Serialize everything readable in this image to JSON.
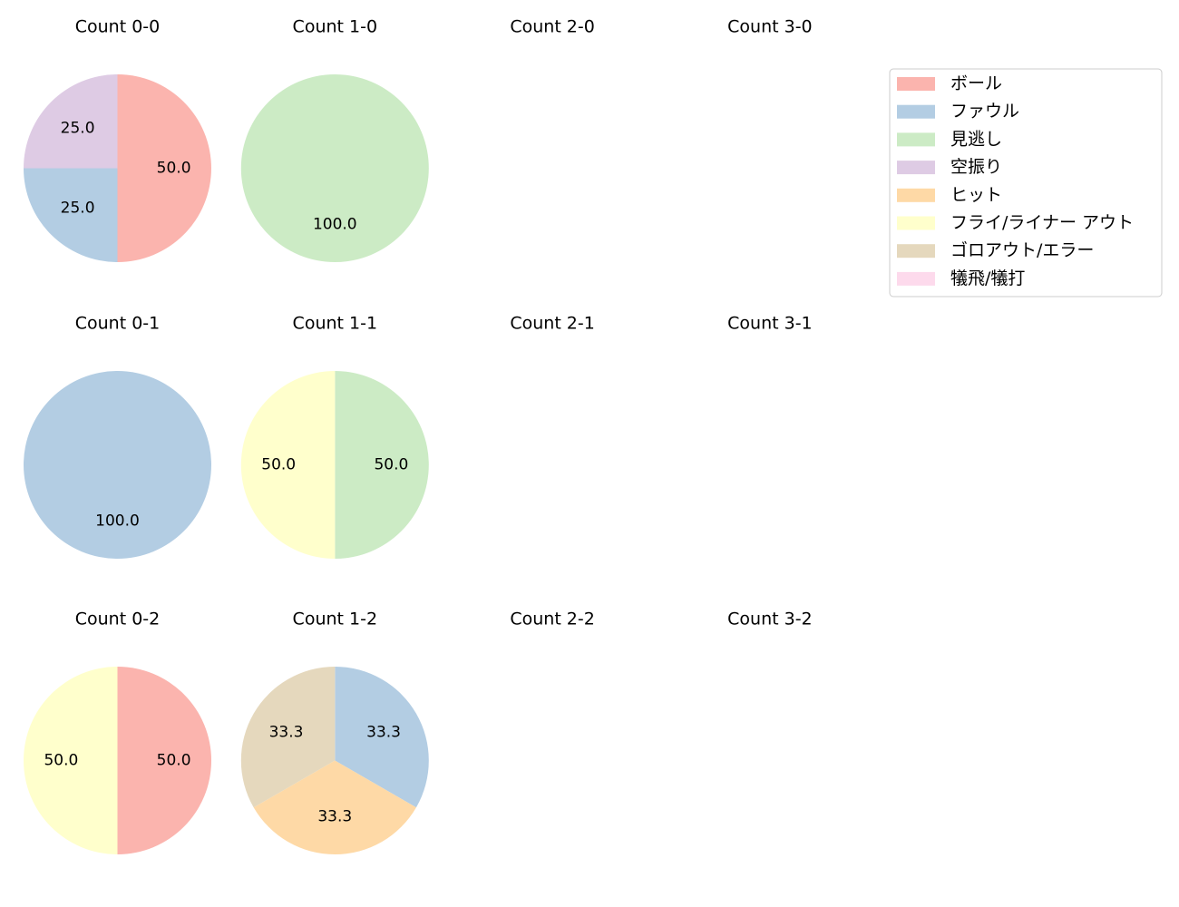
{
  "legend": {
    "placement": "top-right",
    "entries": [
      {
        "label": "ボール",
        "color": "#fbb4ae"
      },
      {
        "label": "ファウル",
        "color": "#b3cde3"
      },
      {
        "label": "見逃し",
        "color": "#ccebc5"
      },
      {
        "label": "空振り",
        "color": "#decbe4"
      },
      {
        "label": "ヒット",
        "color": "#fed9a6"
      },
      {
        "label": "フライ/ライナー アウト",
        "color": "#ffffcc"
      },
      {
        "label": "ゴロアウト/エラー",
        "color": "#e5d8bd"
      },
      {
        "label": "犠飛/犠打",
        "color": "#fddaec"
      }
    ]
  },
  "chart_data": [
    {
      "type": "pie",
      "title": "Count 0-0",
      "slices": [
        {
          "label": "ボール",
          "value": 50.0
        },
        {
          "label": "ファウル",
          "value": 25.0
        },
        {
          "label": "空振り",
          "value": 25.0
        }
      ]
    },
    {
      "type": "pie",
      "title": "Count 1-0",
      "slices": [
        {
          "label": "見逃し",
          "value": 100.0
        }
      ]
    },
    {
      "type": "pie",
      "title": "Count 2-0",
      "slices": []
    },
    {
      "type": "pie",
      "title": "Count 3-0",
      "slices": []
    },
    {
      "type": "pie",
      "title": "Count 0-1",
      "slices": [
        {
          "label": "ファウル",
          "value": 100.0
        }
      ]
    },
    {
      "type": "pie",
      "title": "Count 1-1",
      "slices": [
        {
          "label": "見逃し",
          "value": 50.0
        },
        {
          "label": "フライ/ライナー アウト",
          "value": 50.0
        }
      ]
    },
    {
      "type": "pie",
      "title": "Count 2-1",
      "slices": []
    },
    {
      "type": "pie",
      "title": "Count 3-1",
      "slices": []
    },
    {
      "type": "pie",
      "title": "Count 0-2",
      "slices": [
        {
          "label": "ボール",
          "value": 50.0
        },
        {
          "label": "フライ/ライナー アウト",
          "value": 50.0
        }
      ]
    },
    {
      "type": "pie",
      "title": "Count 1-2",
      "slices": [
        {
          "label": "ファウル",
          "value": 33.3
        },
        {
          "label": "ヒット",
          "value": 33.3
        },
        {
          "label": "ゴロアウト/エラー",
          "value": 33.3
        }
      ]
    },
    {
      "type": "pie",
      "title": "Count 2-2",
      "slices": []
    },
    {
      "type": "pie",
      "title": "Count 3-2",
      "slices": []
    }
  ]
}
